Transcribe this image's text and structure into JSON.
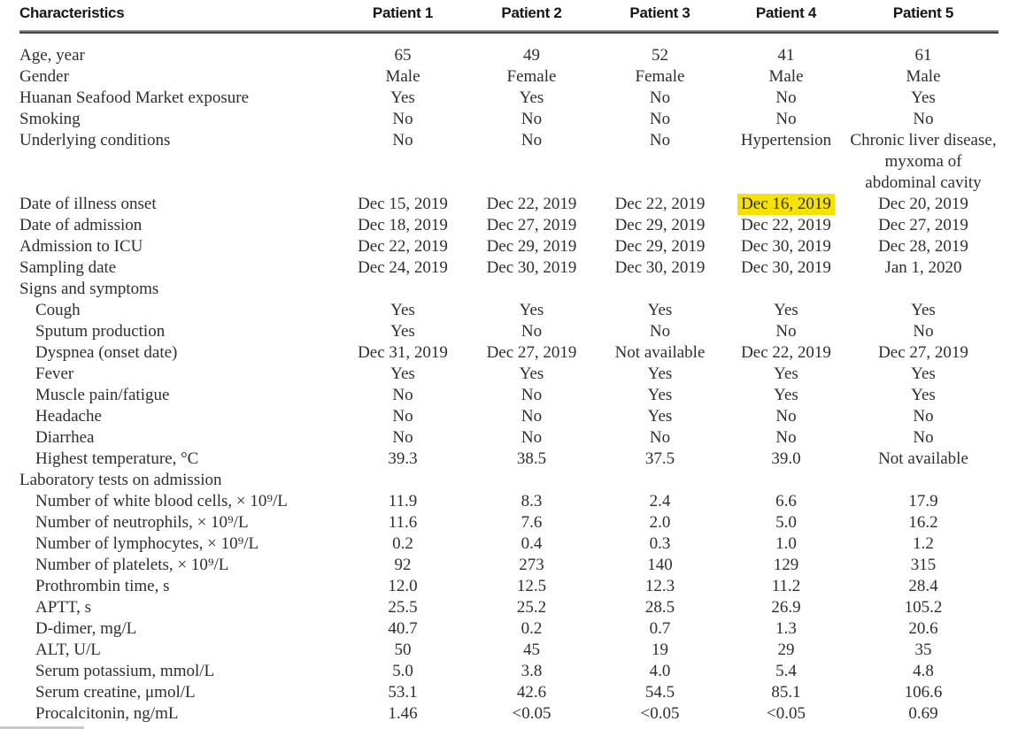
{
  "table": {
    "columns": [
      "Characteristics",
      "Patient 1",
      "Patient 2",
      "Patient 3",
      "Patient 4",
      "Patient 5"
    ],
    "highlight": {
      "row_index": 5,
      "col_index": 3,
      "color": "#f5e102"
    },
    "rows": [
      {
        "label": "Age, year",
        "indent": 0,
        "cells": [
          "65",
          "49",
          "52",
          "41",
          "61"
        ]
      },
      {
        "label": "Gender",
        "indent": 0,
        "cells": [
          "Male",
          "Female",
          "Female",
          "Male",
          "Male"
        ]
      },
      {
        "label": "Huanan Seafood Market exposure",
        "indent": 0,
        "cells": [
          "Yes",
          "Yes",
          "No",
          "No",
          "Yes"
        ]
      },
      {
        "label": "Smoking",
        "indent": 0,
        "cells": [
          "No",
          "No",
          "No",
          "No",
          "No"
        ]
      },
      {
        "label": "Underlying conditions",
        "indent": 0,
        "cells": [
          "No",
          "No",
          "No",
          "Hypertension",
          "Chronic liver disease, myxoma of abdominal cavity"
        ]
      },
      {
        "label": "Date of illness onset",
        "indent": 0,
        "cells": [
          "Dec 15, 2019",
          "Dec 22, 2019",
          "Dec 22, 2019",
          "Dec 16, 2019",
          "Dec 20, 2019"
        ]
      },
      {
        "label": "Date of admission",
        "indent": 0,
        "cells": [
          "Dec 18, 2019",
          "Dec 27, 2019",
          "Dec 29, 2019",
          "Dec 22, 2019",
          "Dec 27, 2019"
        ]
      },
      {
        "label": "Admission to ICU",
        "indent": 0,
        "cells": [
          "Dec 22, 2019",
          "Dec 29, 2019",
          "Dec 29, 2019",
          "Dec 30, 2019",
          "Dec 28, 2019"
        ]
      },
      {
        "label": "Sampling date",
        "indent": 0,
        "cells": [
          "Dec 24, 2019",
          "Dec 30, 2019",
          "Dec 30, 2019",
          "Dec 30, 2019",
          "Jan 1, 2020"
        ]
      },
      {
        "label": "Signs and symptoms",
        "indent": 0,
        "cells": [
          "",
          "",
          "",
          "",
          ""
        ]
      },
      {
        "label": "Cough",
        "indent": 1,
        "cells": [
          "Yes",
          "Yes",
          "Yes",
          "Yes",
          "Yes"
        ]
      },
      {
        "label": "Sputum production",
        "indent": 1,
        "cells": [
          "Yes",
          "No",
          "No",
          "No",
          "No"
        ]
      },
      {
        "label": "Dyspnea (onset date)",
        "indent": 1,
        "cells": [
          "Dec 31, 2019",
          "Dec 27, 2019",
          "Not available",
          "Dec 22, 2019",
          "Dec 27, 2019"
        ]
      },
      {
        "label": "Fever",
        "indent": 1,
        "cells": [
          "Yes",
          "Yes",
          "Yes",
          "Yes",
          "Yes"
        ]
      },
      {
        "label": "Muscle pain/fatigue",
        "indent": 1,
        "cells": [
          "No",
          "No",
          "Yes",
          "Yes",
          "Yes"
        ]
      },
      {
        "label": "Headache",
        "indent": 1,
        "cells": [
          "No",
          "No",
          "Yes",
          "No",
          "No"
        ]
      },
      {
        "label": "Diarrhea",
        "indent": 1,
        "cells": [
          "No",
          "No",
          "No",
          "No",
          "No"
        ]
      },
      {
        "label": "Highest temperature, °C",
        "indent": 1,
        "cells": [
          "39.3",
          "38.5",
          "37.5",
          "39.0",
          "Not available"
        ]
      },
      {
        "label": "Laboratory tests on admission",
        "indent": 0,
        "cells": [
          "",
          "",
          "",
          "",
          ""
        ]
      },
      {
        "label": "Number of white blood cells, × 10⁹/L",
        "indent": 1,
        "cells": [
          "11.9",
          "8.3",
          "2.4",
          "6.6",
          "17.9"
        ]
      },
      {
        "label": "Number of neutrophils, × 10⁹/L",
        "indent": 1,
        "cells": [
          "11.6",
          "7.6",
          "2.0",
          "5.0",
          "16.2"
        ]
      },
      {
        "label": "Number of lymphocytes, × 10⁹/L",
        "indent": 1,
        "cells": [
          "0.2",
          "0.4",
          "0.3",
          "1.0",
          "1.2"
        ]
      },
      {
        "label": "Number of platelets, × 10⁹/L",
        "indent": 1,
        "cells": [
          "92",
          "273",
          "140",
          "129",
          "315"
        ]
      },
      {
        "label": "Prothrombin time, s",
        "indent": 1,
        "cells": [
          "12.0",
          "12.5",
          "12.3",
          "11.2",
          "28.4"
        ]
      },
      {
        "label": "APTT, s",
        "indent": 1,
        "cells": [
          "25.5",
          "25.2",
          "28.5",
          "26.9",
          "105.2"
        ]
      },
      {
        "label": "D-dimer, mg/L",
        "indent": 1,
        "cells": [
          "40.7",
          "0.2",
          "0.7",
          "1.3",
          "20.6"
        ]
      },
      {
        "label": "ALT, U/L",
        "indent": 1,
        "cells": [
          "50",
          "45",
          "19",
          "29",
          "35"
        ]
      },
      {
        "label": "Serum potassium, mmol/L",
        "indent": 1,
        "cells": [
          "5.0",
          "3.8",
          "4.0",
          "5.4",
          "4.8"
        ]
      },
      {
        "label": "Serum creatine, μmol/L",
        "indent": 1,
        "cells": [
          "53.1",
          "42.6",
          "54.5",
          "85.1",
          "106.6"
        ]
      },
      {
        "label": "Procalcitonin, ng/mL",
        "indent": 1,
        "cells": [
          "1.46",
          "<0.05",
          "<0.05",
          "<0.05",
          "0.69"
        ]
      }
    ]
  }
}
